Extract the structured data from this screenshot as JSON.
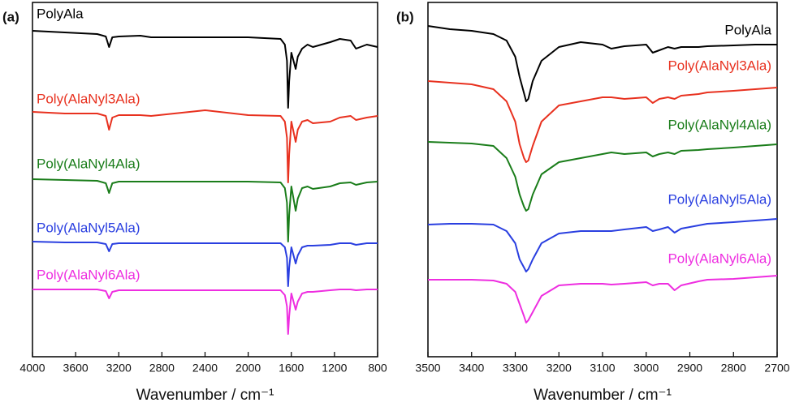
{
  "chart_data": [
    {
      "type": "line",
      "panel_label": "(a)",
      "x_label": "Wavenumber / cm⁻¹",
      "x": [
        4000,
        3700,
        3400,
        3320,
        3290,
        3260,
        3200,
        3000,
        2900,
        2400,
        2000,
        1700,
        1660,
        1640,
        1630,
        1620,
        1600,
        1560,
        1540,
        1500,
        1450,
        1400,
        1240,
        1150,
        1050,
        1000,
        900,
        800
      ],
      "xlim": [
        4000,
        800
      ],
      "xticks": [
        4000,
        3600,
        3200,
        2800,
        2400,
        2000,
        1600,
        1200,
        800
      ],
      "ylim": [
        0,
        437
      ],
      "series": [
        {
          "name": "PolyAla",
          "color": "#000000",
          "values": [
            402,
            400,
            398,
            395,
            382,
            394,
            395,
            396,
            394,
            394,
            394,
            392,
            385,
            365,
            307,
            340,
            375,
            355,
            370,
            380,
            385,
            382,
            388,
            392,
            390,
            380,
            385,
            382
          ]
        },
        {
          "name": "Poly(AlaNyl3Ala)",
          "color": "#e8311f",
          "values": [
            302,
            300,
            300,
            297,
            280,
            295,
            298,
            298,
            297,
            304,
            298,
            297,
            290,
            270,
            215,
            250,
            290,
            265,
            280,
            290,
            292,
            288,
            290,
            295,
            297,
            292,
            295,
            297
          ]
        },
        {
          "name": "Poly(AlaNyl4Ala)",
          "color": "#1a7d1a",
          "values": [
            219,
            218,
            217,
            214,
            202,
            214,
            216,
            216,
            216,
            216,
            216,
            215,
            208,
            190,
            142,
            175,
            210,
            180,
            195,
            208,
            210,
            207,
            210,
            214,
            215,
            212,
            215,
            216
          ]
        },
        {
          "name": "Poly(AlaNyl5Ala)",
          "color": "#2a3fe0",
          "values": [
            142,
            141,
            141,
            139,
            130,
            139,
            140,
            140,
            140,
            140,
            140,
            140,
            135,
            122,
            87,
            110,
            135,
            115,
            125,
            135,
            137,
            137,
            138,
            140,
            140,
            138,
            140,
            140
          ]
        },
        {
          "name": "Poly(AlaNyl6Ala)",
          "color": "#ee2ee0",
          "values": [
            83,
            83,
            83,
            81,
            72,
            80,
            82,
            82,
            82,
            82,
            82,
            82,
            76,
            62,
            28,
            50,
            78,
            58,
            68,
            78,
            80,
            80,
            82,
            83,
            83,
            82,
            83,
            83
          ]
        }
      ]
    },
    {
      "type": "line",
      "panel_label": "(b)",
      "x_label": "Wavenumber / cm⁻¹",
      "x": [
        3500,
        3450,
        3400,
        3350,
        3320,
        3300,
        3290,
        3280,
        3275,
        3270,
        3260,
        3240,
        3200,
        3150,
        3100,
        3080,
        3050,
        3000,
        2985,
        2970,
        2950,
        2935,
        2920,
        2880,
        2860,
        2800,
        2750,
        2700
      ],
      "xlim": [
        3500,
        2700
      ],
      "xticks": [
        3500,
        3400,
        3300,
        3200,
        3100,
        3000,
        2900,
        2800,
        2700
      ],
      "ylim": [
        0,
        437
      ],
      "series": [
        {
          "name": "PolyAla",
          "color": "#000000",
          "values": [
            408,
            404,
            402,
            398,
            390,
            370,
            345,
            325,
            315,
            318,
            340,
            365,
            382,
            388,
            385,
            380,
            383,
            385,
            375,
            378,
            382,
            380,
            382,
            382,
            383,
            384,
            385,
            385
          ]
        },
        {
          "name": "Poly(AlaNyl3Ala)",
          "color": "#e8311f",
          "values": [
            340,
            338,
            336,
            330,
            315,
            290,
            262,
            245,
            240,
            242,
            260,
            290,
            310,
            315,
            320,
            320,
            318,
            320,
            313,
            318,
            320,
            318,
            322,
            324,
            326,
            328,
            330,
            332
          ]
        },
        {
          "name": "Poly(AlaNyl4Ala)",
          "color": "#1a7d1a",
          "values": [
            265,
            264,
            263,
            260,
            245,
            222,
            200,
            185,
            180,
            182,
            200,
            225,
            240,
            245,
            250,
            252,
            250,
            252,
            247,
            250,
            252,
            250,
            254,
            255,
            256,
            258,
            260,
            262
          ]
        },
        {
          "name": "Poly(AlaNyl5Ala)",
          "color": "#2a3fe0",
          "values": [
            163,
            164,
            164,
            163,
            155,
            140,
            120,
            110,
            105,
            108,
            120,
            140,
            152,
            155,
            155,
            155,
            157,
            160,
            155,
            157,
            160,
            153,
            158,
            162,
            164,
            166,
            168,
            170
          ]
        },
        {
          "name": "Poly(AlaNyl6Ala)",
          "color": "#ee2ee0",
          "values": [
            95,
            95,
            95,
            94,
            90,
            80,
            65,
            50,
            42,
            45,
            55,
            75,
            88,
            90,
            90,
            89,
            90,
            92,
            88,
            90,
            90,
            82,
            88,
            93,
            95,
            96,
            98,
            100
          ]
        }
      ]
    }
  ]
}
